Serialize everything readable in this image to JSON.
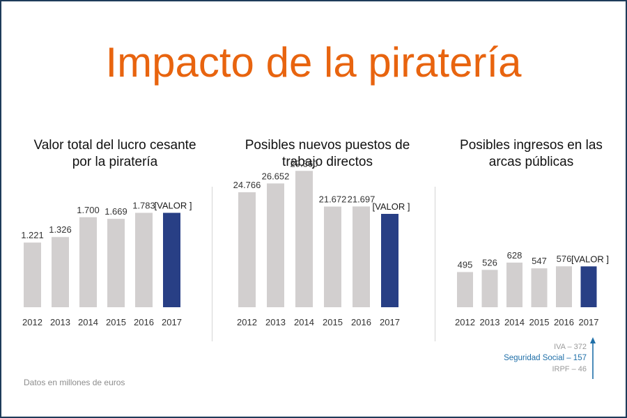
{
  "title": "Impacto de la piratería",
  "footnote": "Datos en millones de euros",
  "colors": {
    "title": "#e8640f",
    "bar": "#d2cfcf",
    "highlight": "#283f85",
    "social": "#1f6fa8"
  },
  "breakdown": {
    "iva": "IVA – 372",
    "seguridad_social": "Seguridad Social – 157",
    "irpf": "IRPF – 46"
  },
  "chart_data": [
    {
      "type": "bar",
      "title": "Valor total del lucro cesante por la piratería",
      "categories": [
        "2012",
        "2013",
        "2014",
        "2015",
        "2016",
        "2017"
      ],
      "values": [
        1221,
        1326,
        1700,
        1669,
        1783,
        1783
      ],
      "labels": [
        "1.221",
        "1.326",
        "1.700",
        "1.669",
        "1.783",
        "[VALOR ]"
      ],
      "highlight_index": 5,
      "ylim": [
        0,
        3000
      ]
    },
    {
      "type": "bar",
      "title": "Posibles nuevos puestos de trabajo directos",
      "categories": [
        "2012",
        "2013",
        "2014",
        "2015",
        "2016",
        "2017"
      ],
      "values": [
        24766,
        26652,
        29360,
        21672,
        21697,
        20100
      ],
      "labels": [
        "24.766",
        "26.652",
        "29.360",
        "21.672",
        "21.697",
        "[VALOR ]"
      ],
      "highlight_index": 5,
      "ylim": [
        0,
        30000
      ]
    },
    {
      "type": "bar",
      "title": "Posibles ingresos en las arcas públicas",
      "categories": [
        "2012",
        "2013",
        "2014",
        "2015",
        "2016",
        "2017"
      ],
      "values": [
        495,
        526,
        628,
        547,
        576,
        575
      ],
      "labels": [
        "495",
        "526",
        "628",
        "547",
        "576",
        "[VALOR ]"
      ],
      "highlight_index": 5,
      "ylim": [
        0,
        2000
      ]
    }
  ]
}
